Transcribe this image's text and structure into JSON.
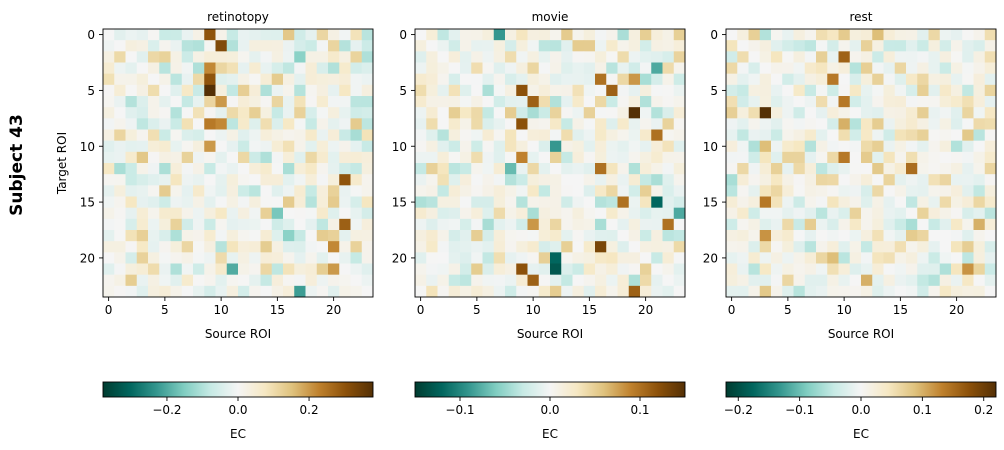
{
  "suptitle": "Subject 43",
  "chart_data": [
    {
      "type": "heatmap",
      "title": "retinotopy",
      "xlabel": "Source ROI",
      "ylabel": "Target ROI",
      "n": 24,
      "xticks": [
        0,
        5,
        10,
        15,
        20
      ],
      "yticks": [
        0,
        5,
        10,
        15,
        20
      ],
      "colorbar": {
        "label": "EC",
        "vmin": -0.38,
        "vmax": 0.38,
        "ticks": [
          -0.2,
          0.0,
          0.2
        ],
        "tick_labels": [
          "−0.2",
          "0.0",
          "0.2"
        ]
      },
      "cells": [
        {
          "r": 0,
          "c": 9,
          "v": 0.3
        },
        {
          "r": 1,
          "c": 10,
          "v": 0.32
        },
        {
          "r": 3,
          "c": 9,
          "v": 0.22
        },
        {
          "r": 4,
          "c": 9,
          "v": 0.3
        },
        {
          "r": 5,
          "c": 9,
          "v": 0.38
        },
        {
          "r": 6,
          "c": 10,
          "v": 0.2
        },
        {
          "r": 8,
          "c": 9,
          "v": 0.24
        },
        {
          "r": 8,
          "c": 10,
          "v": 0.22
        },
        {
          "r": 10,
          "c": 9,
          "v": 0.2
        },
        {
          "r": 13,
          "c": 21,
          "v": 0.3
        },
        {
          "r": 17,
          "c": 21,
          "v": 0.28
        },
        {
          "r": 19,
          "c": 20,
          "v": 0.22
        },
        {
          "r": 21,
          "c": 20,
          "v": 0.2
        },
        {
          "r": 23,
          "c": 17,
          "v": -0.22
        },
        {
          "r": 21,
          "c": 11,
          "v": -0.2
        },
        {
          "r": 16,
          "c": 15,
          "v": -0.16
        },
        {
          "r": 18,
          "c": 16,
          "v": -0.14
        },
        {
          "r": 2,
          "c": 17,
          "v": -0.14
        },
        {
          "r": 0,
          "c": 16,
          "v": 0.14
        },
        {
          "r": 14,
          "c": 20,
          "v": 0.12
        },
        {
          "r": 11,
          "c": 3,
          "v": 0.14
        },
        {
          "r": 17,
          "c": 6,
          "v": 0.12
        },
        {
          "r": 21,
          "c": 4,
          "v": 0.1
        }
      ]
    },
    {
      "type": "heatmap",
      "title": "movie",
      "xlabel": "Source ROI",
      "ylabel": "",
      "n": 24,
      "xticks": [
        0,
        5,
        10,
        15,
        20
      ],
      "yticks": [
        0,
        5,
        10,
        15,
        20
      ],
      "colorbar": {
        "label": "EC",
        "vmin": -0.15,
        "vmax": 0.15,
        "ticks": [
          -0.1,
          0.0,
          0.1
        ],
        "tick_labels": [
          "−0.1",
          "0.0",
          "0.1"
        ]
      },
      "cells": [
        {
          "r": 5,
          "c": 9,
          "v": 0.12
        },
        {
          "r": 6,
          "c": 10,
          "v": 0.11
        },
        {
          "r": 8,
          "c": 9,
          "v": 0.12
        },
        {
          "r": 7,
          "c": 19,
          "v": 0.15
        },
        {
          "r": 5,
          "c": 17,
          "v": 0.11
        },
        {
          "r": 4,
          "c": 16,
          "v": 0.1
        },
        {
          "r": 9,
          "c": 21,
          "v": 0.1
        },
        {
          "r": 12,
          "c": 16,
          "v": 0.1
        },
        {
          "r": 15,
          "c": 18,
          "v": 0.1
        },
        {
          "r": 19,
          "c": 16,
          "v": 0.13
        },
        {
          "r": 21,
          "c": 9,
          "v": 0.12
        },
        {
          "r": 22,
          "c": 10,
          "v": 0.11
        },
        {
          "r": 23,
          "c": 19,
          "v": 0.11
        },
        {
          "r": 17,
          "c": 22,
          "v": 0.1
        },
        {
          "r": 11,
          "c": 9,
          "v": 0.09
        },
        {
          "r": 17,
          "c": 10,
          "v": 0.08
        },
        {
          "r": 4,
          "c": 19,
          "v": 0.08
        },
        {
          "r": 15,
          "c": 21,
          "v": -0.12
        },
        {
          "r": 20,
          "c": 12,
          "v": -0.12
        },
        {
          "r": 21,
          "c": 12,
          "v": -0.13
        },
        {
          "r": 10,
          "c": 12,
          "v": -0.09
        },
        {
          "r": 0,
          "c": 7,
          "v": -0.09
        },
        {
          "r": 3,
          "c": 21,
          "v": -0.08
        },
        {
          "r": 16,
          "c": 23,
          "v": -0.08
        },
        {
          "r": 12,
          "c": 8,
          "v": -0.07
        }
      ]
    },
    {
      "type": "heatmap",
      "title": "rest",
      "xlabel": "Source ROI",
      "ylabel": "",
      "n": 24,
      "xticks": [
        0,
        5,
        10,
        15,
        20
      ],
      "yticks": [
        0,
        5,
        10,
        15,
        20
      ],
      "colorbar": {
        "label": "EC",
        "vmin": -0.22,
        "vmax": 0.22,
        "ticks": [
          -0.2,
          -0.1,
          0.0,
          0.1,
          0.2
        ],
        "tick_labels": [
          "−0.2",
          "−0.1",
          "0.0",
          "0.1",
          "0.2"
        ]
      },
      "cells": [
        {
          "r": 7,
          "c": 3,
          "v": 0.22
        },
        {
          "r": 2,
          "c": 10,
          "v": 0.16
        },
        {
          "r": 4,
          "c": 9,
          "v": 0.14
        },
        {
          "r": 6,
          "c": 10,
          "v": 0.14
        },
        {
          "r": 11,
          "c": 10,
          "v": 0.14
        },
        {
          "r": 12,
          "c": 16,
          "v": 0.15
        },
        {
          "r": 15,
          "c": 3,
          "v": 0.14
        },
        {
          "r": 18,
          "c": 3,
          "v": 0.12
        },
        {
          "r": 21,
          "c": 21,
          "v": 0.12
        },
        {
          "r": 22,
          "c": 12,
          "v": 0.1
        },
        {
          "r": 8,
          "c": 10,
          "v": 0.1
        },
        {
          "r": 17,
          "c": 22,
          "v": 0.1
        },
        {
          "r": 10,
          "c": 3,
          "v": 0.09
        },
        {
          "r": 23,
          "c": 3,
          "v": 0.08
        },
        {
          "r": 0,
          "c": 13,
          "v": 0.09
        },
        {
          "r": 20,
          "c": 9,
          "v": 0.09
        },
        {
          "r": 9,
          "c": 21,
          "v": 0.08
        },
        {
          "r": 12,
          "c": 13,
          "v": 0.08
        }
      ]
    }
  ]
}
